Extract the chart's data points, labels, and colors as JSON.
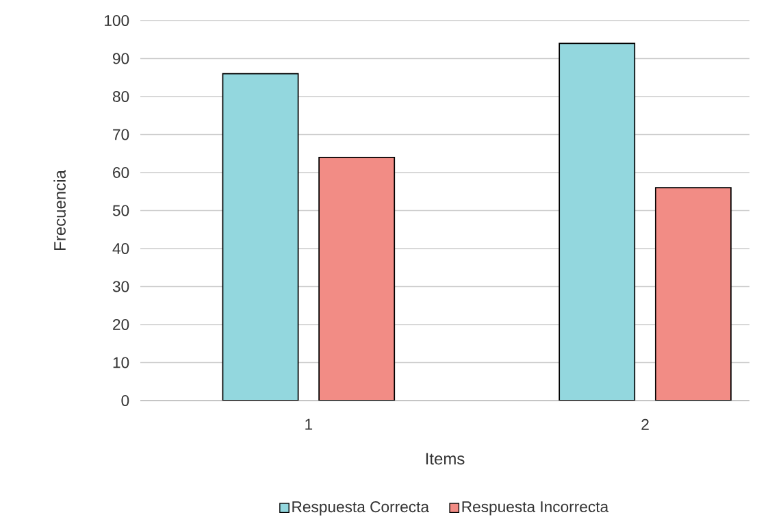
{
  "chart_data": {
    "type": "bar",
    "xlabel": "Items",
    "ylabel": "Frecuencia",
    "categories": [
      "1",
      "2"
    ],
    "series": [
      {
        "name": "Respuesta Correcta",
        "color": "#93d7de",
        "values": [
          86,
          94
        ]
      },
      {
        "name": "Respuesta Incorrecta",
        "color": "#f28c85",
        "values": [
          64,
          56
        ]
      }
    ],
    "ylim": [
      0,
      100
    ],
    "yticks": [
      0,
      10,
      20,
      30,
      40,
      50,
      60,
      70,
      80,
      90,
      100
    ],
    "grid": "y",
    "legend": "bottom"
  }
}
